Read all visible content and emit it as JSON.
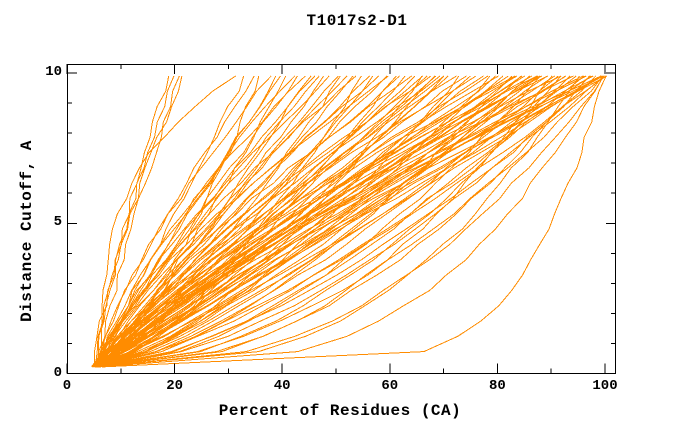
{
  "chart_data": {
    "type": "line",
    "title": "T1017s2-D1",
    "xlabel": "Percent of Residues (CA)",
    "ylabel": "Distance Cutoff, A",
    "xlim": [
      0,
      102
    ],
    "ylim": [
      0,
      10.3
    ],
    "x_major_ticks": [
      0,
      20,
      40,
      60,
      80,
      100
    ],
    "x_minor_ticks": [
      10,
      30,
      50,
      70,
      90
    ],
    "y_major_ticks": [
      0,
      5,
      10
    ],
    "y_minor_ticks": [
      1,
      2,
      3,
      4,
      6,
      7,
      8,
      9
    ],
    "grid": false,
    "legend": "none",
    "background_color": "#ffffff",
    "curve_color": "#ff8c00",
    "axis_color": "#000000",
    "cutoff_min": 0.22,
    "cutoff_max": 9.9,
    "cutoff_points": 20,
    "seed": 1017,
    "curves_format": [
      "start_percent",
      "top_percent",
      "shape_exp",
      "blend"
    ],
    "curves": [
      [
        5.0,
        19.0,
        1.3,
        0.85
      ],
      [
        5.5,
        20.0,
        1.45,
        0.8
      ],
      [
        6.0,
        20.8,
        1.25,
        0.85
      ],
      [
        5.2,
        21.6,
        1.5,
        0.8
      ],
      [
        6.0,
        31.0,
        3.5,
        0.9
      ],
      [
        4.5,
        33,
        0.9,
        0.8
      ],
      [
        5.0,
        35,
        1.3,
        0.7
      ],
      [
        6.0,
        36,
        0.7,
        0.85
      ],
      [
        5.5,
        38,
        1.5,
        0.75
      ],
      [
        4.8,
        39,
        1.0,
        0.8
      ],
      [
        6.2,
        40,
        1.2,
        0.7
      ],
      [
        5.1,
        41,
        0.8,
        0.9
      ],
      [
        5.8,
        42,
        1.4,
        0.75
      ],
      [
        4.6,
        43,
        1.05,
        0.8
      ],
      [
        6.5,
        44,
        1.6,
        0.7
      ],
      [
        5.3,
        45,
        0.85,
        0.9
      ],
      [
        5.9,
        46,
        1.25,
        0.75
      ],
      [
        4.7,
        47,
        1.1,
        0.8
      ],
      [
        6.1,
        48,
        0.95,
        0.85
      ],
      [
        5.4,
        49,
        1.45,
        0.7
      ],
      [
        5.6,
        50,
        1.0,
        0.8
      ],
      [
        5.0,
        51,
        0.75,
        0.85
      ],
      [
        6.0,
        52,
        1.2,
        0.7
      ],
      [
        4.8,
        53,
        0.9,
        0.8
      ],
      [
        5.5,
        54,
        1.5,
        0.65
      ],
      [
        6.3,
        55,
        0.65,
        0.9
      ],
      [
        5.1,
        56,
        1.1,
        0.75
      ],
      [
        5.7,
        57,
        0.8,
        0.85
      ],
      [
        4.9,
        58,
        1.35,
        0.7
      ],
      [
        6.1,
        59,
        0.95,
        0.8
      ],
      [
        5.3,
        60,
        1.6,
        0.65
      ],
      [
        5.8,
        61,
        0.7,
        0.9
      ],
      [
        5.0,
        62,
        1.15,
        0.75
      ],
      [
        6.4,
        63,
        0.85,
        0.85
      ],
      [
        5.2,
        64,
        1.4,
        0.7
      ],
      [
        5.6,
        65,
        1.0,
        0.8
      ],
      [
        4.7,
        66,
        0.6,
        0.9
      ],
      [
        6.0,
        66.5,
        1.25,
        0.7
      ],
      [
        5.4,
        67,
        0.9,
        0.8
      ],
      [
        5.9,
        68,
        1.5,
        0.65
      ],
      [
        5.1,
        68.5,
        0.75,
        0.9
      ],
      [
        6.2,
        69,
        1.05,
        0.75
      ],
      [
        5.5,
        69.5,
        1.3,
        0.7
      ],
      [
        4.9,
        70,
        0.8,
        0.85
      ],
      [
        5.7,
        70.5,
        1.15,
        0.75
      ],
      [
        5.2,
        71,
        0.9,
        0.8
      ],
      [
        6.1,
        72,
        1.3,
        0.7
      ],
      [
        5.5,
        73,
        0.65,
        0.9
      ],
      [
        4.8,
        74,
        1.1,
        0.75
      ],
      [
        5.9,
        75,
        0.8,
        0.85
      ],
      [
        5.3,
        76,
        1.45,
        0.65
      ],
      [
        6.3,
        77,
        0.95,
        0.8
      ],
      [
        5.0,
        78,
        1.2,
        0.7
      ],
      [
        5.6,
        79,
        0.7,
        0.9
      ],
      [
        5.8,
        80,
        1.0,
        0.8
      ],
      [
        4.9,
        80.5,
        1.35,
        0.7
      ],
      [
        6.0,
        81,
        0.85,
        0.85
      ],
      [
        5.4,
        82,
        1.15,
        0.75
      ],
      [
        5.1,
        82.5,
        0.6,
        0.92
      ],
      [
        6.2,
        83,
        1.25,
        0.7
      ],
      [
        5.7,
        83.5,
        0.9,
        0.82
      ],
      [
        5.2,
        84,
        1.5,
        0.65
      ],
      [
        5.9,
        84.5,
        0.78,
        0.88
      ],
      [
        5.0,
        85,
        1.05,
        0.78
      ],
      [
        6.4,
        85.5,
        1.3,
        0.7
      ],
      [
        5.5,
        86,
        0.68,
        0.9
      ],
      [
        5.3,
        86.5,
        1.18,
        0.74
      ],
      [
        6.0,
        87,
        0.88,
        0.84
      ],
      [
        4.8,
        87,
        1.4,
        0.68
      ],
      [
        5.6,
        87.5,
        0.75,
        0.88
      ],
      [
        5.8,
        87.5,
        1.1,
        0.76
      ],
      [
        5.4,
        88,
        0.55,
        0.92
      ],
      [
        6.1,
        88.5,
        1.2,
        0.72
      ],
      [
        5.0,
        89,
        0.8,
        0.85
      ],
      [
        5.7,
        89.5,
        1.45,
        0.66
      ],
      [
        5.2,
        90,
        0.42,
        0.94
      ],
      [
        6.3,
        90.5,
        1.0,
        0.8
      ],
      [
        5.5,
        91,
        0.68,
        0.9
      ],
      [
        4.9,
        91.5,
        1.3,
        0.7
      ],
      [
        5.8,
        92,
        0.5,
        0.93
      ],
      [
        6.0,
        92.5,
        0.92,
        0.82
      ],
      [
        5.3,
        93,
        1.18,
        0.74
      ],
      [
        5.6,
        93.5,
        0.6,
        0.9
      ],
      [
        5.1,
        94,
        1.38,
        0.68
      ],
      [
        6.2,
        94.5,
        0.78,
        0.86
      ],
      [
        5.4,
        95,
        0.35,
        0.95
      ],
      [
        5.9,
        95.5,
        1.08,
        0.78
      ],
      [
        5.0,
        96,
        0.66,
        0.9
      ],
      [
        6.1,
        96.5,
        1.28,
        0.7
      ],
      [
        5.5,
        97,
        0.46,
        0.93
      ],
      [
        5.2,
        97.5,
        0.95,
        0.82
      ],
      [
        5.7,
        98,
        1.2,
        0.74
      ],
      [
        6.0,
        98.5,
        0.58,
        0.91
      ],
      [
        4.8,
        99,
        0.85,
        0.84
      ],
      [
        5.3,
        99,
        1.42,
        0.66
      ],
      [
        5.8,
        99.5,
        0.3,
        0.96
      ],
      [
        5.5,
        99.5,
        1.05,
        0.78
      ],
      [
        6.2,
        100,
        0.72,
        0.88
      ],
      [
        5.0,
        100,
        1.32,
        0.7
      ],
      [
        5.6,
        100,
        0.4,
        0.94
      ],
      [
        5.9,
        100,
        0.98,
        0.8
      ],
      [
        5.1,
        100,
        0.62,
        0.9
      ],
      [
        6.0,
        100,
        1.15,
        0.75
      ],
      [
        5.4,
        100,
        0.52,
        0.92
      ],
      [
        6.5,
        100,
        0.14,
        0.97
      ]
    ]
  }
}
